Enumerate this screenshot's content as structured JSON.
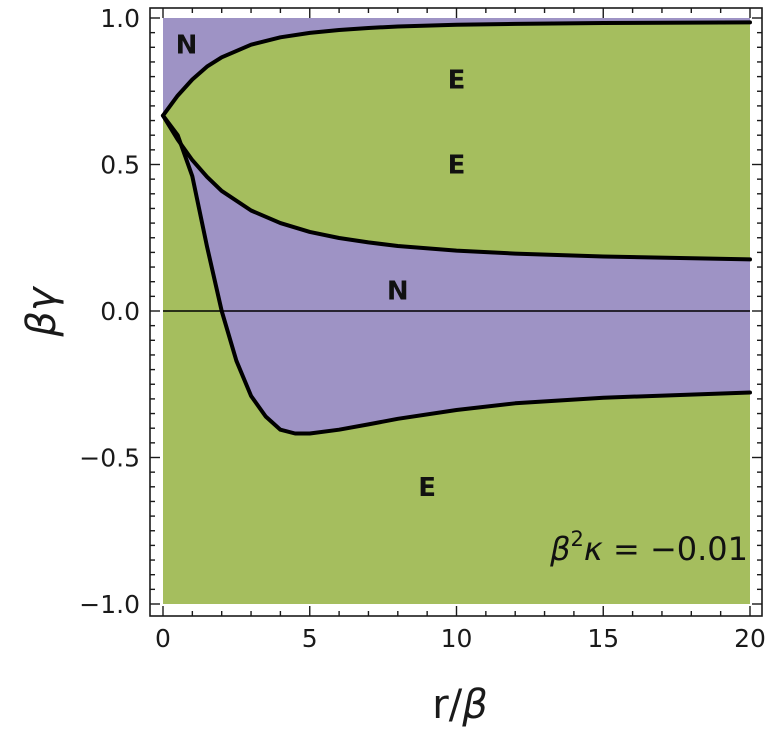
{
  "chart_data": {
    "type": "area",
    "xlabel_base": "r/",
    "xlabel_sym": "β",
    "ylabel": "βγ",
    "xlim": [
      0,
      20
    ],
    "ylim": [
      -1,
      1
    ],
    "x_ticks": [
      {
        "value": 0,
        "label": "0"
      },
      {
        "value": 5,
        "label": "5"
      },
      {
        "value": 10,
        "label": "10"
      },
      {
        "value": 15,
        "label": "15"
      },
      {
        "value": 20,
        "label": "20"
      }
    ],
    "y_ticks": [
      {
        "value": 1.0,
        "label": "1.0"
      },
      {
        "value": 0.5,
        "label": "0.5"
      },
      {
        "value": 0.0,
        "label": "0.0"
      },
      {
        "value": -0.5,
        "label": "−0.5"
      },
      {
        "value": -1.0,
        "label": "−1.0"
      }
    ],
    "colors": {
      "N_region": "#9e93c5",
      "E_region": "#a5be5e",
      "curve": "#000000",
      "frame": "#1a1a1a"
    },
    "curves": [
      {
        "id": "upper",
        "points": [
          [
            0,
            0.667
          ],
          [
            0.5,
            0.735
          ],
          [
            1,
            0.79
          ],
          [
            1.5,
            0.834
          ],
          [
            2,
            0.866
          ],
          [
            3,
            0.909
          ],
          [
            4,
            0.934
          ],
          [
            5,
            0.949
          ],
          [
            6,
            0.959
          ],
          [
            7,
            0.966
          ],
          [
            8,
            0.971
          ],
          [
            10,
            0.977
          ],
          [
            12,
            0.98
          ],
          [
            15,
            0.983
          ],
          [
            20,
            0.985
          ]
        ]
      },
      {
        "id": "middle",
        "points": [
          [
            0,
            0.667
          ],
          [
            0.5,
            0.585
          ],
          [
            1,
            0.515
          ],
          [
            1.5,
            0.458
          ],
          [
            2,
            0.41
          ],
          [
            3,
            0.343
          ],
          [
            4,
            0.3
          ],
          [
            5,
            0.27
          ],
          [
            6,
            0.249
          ],
          [
            7,
            0.234
          ],
          [
            8,
            0.222
          ],
          [
            10,
            0.206
          ],
          [
            12,
            0.196
          ],
          [
            15,
            0.186
          ],
          [
            20,
            0.176
          ]
        ]
      },
      {
        "id": "lower",
        "points": [
          [
            0,
            0.667
          ],
          [
            0.5,
            0.6
          ],
          [
            1,
            0.46
          ],
          [
            1.5,
            0.22
          ],
          [
            2,
            0.0
          ],
          [
            2.5,
            -0.17
          ],
          [
            3,
            -0.29
          ],
          [
            3.5,
            -0.36
          ],
          [
            4,
            -0.405
          ],
          [
            4.5,
            -0.418
          ],
          [
            5,
            -0.418
          ],
          [
            6,
            -0.405
          ],
          [
            7,
            -0.387
          ],
          [
            8,
            -0.368
          ],
          [
            10,
            -0.338
          ],
          [
            12,
            -0.315
          ],
          [
            15,
            -0.296
          ],
          [
            20,
            -0.278
          ]
        ]
      }
    ],
    "zero_line": 0.0,
    "region_labels": [
      {
        "text": "N",
        "x": 0.8,
        "y": 0.91
      },
      {
        "text": "E",
        "x": 10,
        "y": 0.79
      },
      {
        "text": "E",
        "x": 10,
        "y": 0.5
      },
      {
        "text": "N",
        "x": 8,
        "y": 0.07
      },
      {
        "text": "E",
        "x": 9,
        "y": -0.6
      }
    ],
    "annotation": {
      "symbol_beta": "β",
      "exponent": "2",
      "symbol_kappa": "κ",
      "rest": " = −0.01"
    }
  }
}
